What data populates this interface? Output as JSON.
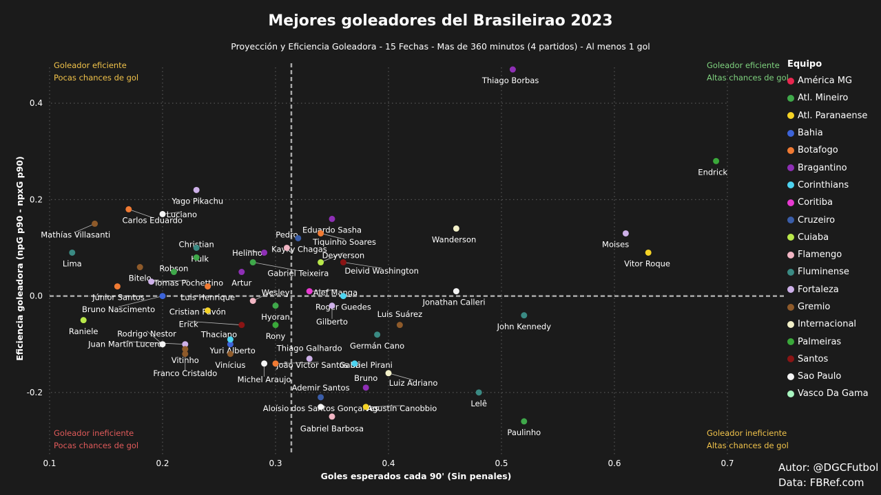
{
  "title": "Mejores goleadores del Brasileirao 2023",
  "subtitle": "Proyección y Eficiencia Goleadora - 15 Fechas - Mas de 360 minutos (4 partidos) - Al menos 1 gol",
  "corners": {
    "top_left": [
      "Goleador eficiente",
      "Pocas chances de gol"
    ],
    "top_right": [
      "Goleador eficiente",
      "Altas chances de gol"
    ],
    "bottom_left": [
      "Goleador ineficiente",
      "Pocas chances de gol"
    ],
    "bottom_right": [
      "Goleador ineficiente",
      "Altas chances de gol"
    ]
  },
  "colors": {
    "background": "#1b1b1b",
    "corner_yellow": "#f0c24a",
    "corner_green": "#7fd37f",
    "corner_red": "#e05a5a",
    "grid": "#555555",
    "mean_line": "#aaaaaa"
  },
  "credits": {
    "author": "Autor: @DGCFutbol",
    "data": "Data: FBRef.com"
  },
  "chart_data": {
    "type": "scatter",
    "xlabel": "Goles esperados cada 90' (Sin penales)",
    "ylabel": "Eficiencia goleadora (npG p90 - npxG p90)",
    "xlim": [
      0.1,
      0.7
    ],
    "ylim": [
      -0.33,
      0.5
    ],
    "xticks": [
      "0.1",
      "0.2",
      "0.3",
      "0.4",
      "0.5",
      "0.6",
      "0.7"
    ],
    "yticks": [
      "-0.2",
      "0.0",
      "0.2",
      "0.4"
    ],
    "grid": true,
    "mean_lines": {
      "x": 0.314,
      "y": 0.0
    },
    "legend_title": "Equipo",
    "legend_position": "right",
    "teams": [
      {
        "name": "América MG",
        "color": "#e8274f"
      },
      {
        "name": "Atl. Mineiro",
        "color": "#3fa84a"
      },
      {
        "name": "Atl. Paranaense",
        "color": "#f5d326"
      },
      {
        "name": "Bahia",
        "color": "#3c63d8"
      },
      {
        "name": "Botafogo",
        "color": "#f07a33"
      },
      {
        "name": "Bragantino",
        "color": "#8e2fb5"
      },
      {
        "name": "Corinthians",
        "color": "#4dd3f0"
      },
      {
        "name": "Coritiba",
        "color": "#e83ad1"
      },
      {
        "name": "Cruzeiro",
        "color": "#3a5da8"
      },
      {
        "name": "Cuiaba",
        "color": "#b9e84a"
      },
      {
        "name": "Flamengo",
        "color": "#f2b6c4"
      },
      {
        "name": "Fluminense",
        "color": "#3a8a83"
      },
      {
        "name": "Fortaleza",
        "color": "#cdb0e8"
      },
      {
        "name": "Gremio",
        "color": "#8e5a2a"
      },
      {
        "name": "Internacional",
        "color": "#f2f0c8"
      },
      {
        "name": "Palmeiras",
        "color": "#3aa83a"
      },
      {
        "name": "Santos",
        "color": "#8a1414"
      },
      {
        "name": "Sao Paulo",
        "color": "#f4f4f4"
      },
      {
        "name": "Vasco Da Gama",
        "color": "#a8f5c0"
      }
    ],
    "points": [
      {
        "label": "Thiago Borbas",
        "team": "Bragantino",
        "x": 0.51,
        "y": 0.47,
        "lx": 0.508,
        "ly": 0.447
      },
      {
        "label": "Endrick",
        "team": "Palmeiras",
        "x": 0.69,
        "y": 0.28,
        "lx": 0.687,
        "ly": 0.257
      },
      {
        "label": "Yago Pikachu",
        "team": "Fortaleza",
        "x": 0.23,
        "y": 0.22,
        "lx": 0.231,
        "ly": 0.197
      },
      {
        "label": "Carlos Eduardo",
        "team": "Botafogo",
        "x": 0.17,
        "y": 0.18,
        "lx": 0.191,
        "ly": 0.157
      },
      {
        "label": "Luciano",
        "team": "Sao Paulo",
        "x": 0.2,
        "y": 0.17,
        "lx": 0.217,
        "ly": 0.169
      },
      {
        "label": "Mathías Villasanti",
        "team": "Gremio",
        "x": 0.14,
        "y": 0.15,
        "lx": 0.123,
        "ly": 0.127
      },
      {
        "label": "Moises",
        "team": "Fortaleza",
        "x": 0.61,
        "y": 0.13,
        "lx": 0.601,
        "ly": 0.107
      },
      {
        "label": "Wanderson",
        "team": "Internacional",
        "x": 0.46,
        "y": 0.14,
        "lx": 0.458,
        "ly": 0.117
      },
      {
        "label": "Eduardo Sasha",
        "team": "Bragantino",
        "x": 0.35,
        "y": 0.16,
        "lx": 0.35,
        "ly": 0.137
      },
      {
        "label": "Pedro",
        "team": "Cruzeiro",
        "x": 0.32,
        "y": 0.12,
        "lx": 0.31,
        "ly": 0.127
      },
      {
        "label": "Tiquinho Soares",
        "team": "Botafogo",
        "x": 0.34,
        "y": 0.13,
        "lx": 0.361,
        "ly": 0.112
      },
      {
        "label": "Kayky Chagas",
        "team": "Flamengo",
        "x": 0.31,
        "y": 0.1,
        "lx": 0.321,
        "ly": 0.097
      },
      {
        "label": "Deyverson",
        "team": "Cuiaba",
        "x": 0.34,
        "y": 0.07,
        "lx": 0.36,
        "ly": 0.084
      },
      {
        "label": "Christian",
        "team": "Fluminense",
        "x": 0.23,
        "y": 0.1,
        "lx": 0.23,
        "ly": 0.107
      },
      {
        "label": "Hulk",
        "team": "Atl. Mineiro",
        "x": 0.23,
        "y": 0.08,
        "lx": 0.233,
        "ly": 0.077
      },
      {
        "label": "Helinho",
        "team": "Bragantino",
        "x": 0.29,
        "y": 0.09,
        "lx": 0.275,
        "ly": 0.089
      },
      {
        "label": "Lima",
        "team": "Fluminense",
        "x": 0.12,
        "y": 0.09,
        "lx": 0.12,
        "ly": 0.067
      },
      {
        "label": "Vitor Roque",
        "team": "Atl. Paranaense",
        "x": 0.63,
        "y": 0.09,
        "lx": 0.629,
        "ly": 0.067
      },
      {
        "label": "Robson",
        "team": "Atl. Mineiro",
        "x": 0.21,
        "y": 0.05,
        "lx": 0.21,
        "ly": 0.057
      },
      {
        "label": "Gabriel Teixeira",
        "team": "Atl. Mineiro",
        "x": 0.28,
        "y": 0.07,
        "lx": 0.32,
        "ly": 0.047
      },
      {
        "label": "Deivid Washington",
        "team": "Santos",
        "x": 0.36,
        "y": 0.07,
        "lx": 0.394,
        "ly": 0.052
      },
      {
        "label": "Bitelo",
        "team": "Gremio",
        "x": 0.18,
        "y": 0.06,
        "lx": 0.18,
        "ly": 0.037
      },
      {
        "label": "Tomas Pochettino",
        "team": "Fortaleza",
        "x": 0.19,
        "y": 0.03,
        "lx": 0.223,
        "ly": 0.027
      },
      {
        "label": "Artur",
        "team": "Bragantino",
        "x": 0.27,
        "y": 0.05,
        "lx": 0.27,
        "ly": 0.027
      },
      {
        "label": "Wesley",
        "team": "Flamengo",
        "x": 0.28,
        "y": -0.01,
        "lx": 0.3,
        "ly": 0.007
      },
      {
        "label": "Alef Manga",
        "team": "Coritiba",
        "x": 0.33,
        "y": 0.01,
        "lx": 0.353,
        "ly": 0.007
      },
      {
        "label": "Júnior Santos",
        "team": "Botafogo",
        "x": 0.16,
        "y": 0.02,
        "lx": 0.161,
        "ly": -0.003
      },
      {
        "label": "Luis Henrique",
        "team": "Botafogo",
        "x": 0.24,
        "y": 0.02,
        "lx": 0.24,
        "ly": -0.003
      },
      {
        "label": "Jonathan Calleri",
        "team": "Sao Paulo",
        "x": 0.46,
        "y": 0.01,
        "lx": 0.458,
        "ly": -0.013
      },
      {
        "label": "Bruno Nascimento",
        "team": "Bahia",
        "x": 0.2,
        "y": 0.0,
        "lx": 0.161,
        "ly": -0.028
      },
      {
        "label": "Roger Guedes",
        "team": "Corinthians",
        "x": 0.36,
        "y": 0.0,
        "lx": 0.36,
        "ly": -0.023
      },
      {
        "label": "Cristian Pavón",
        "team": "Atl. Paranaense",
        "x": 0.24,
        "y": -0.03,
        "lx": 0.231,
        "ly": -0.033
      },
      {
        "label": "Hyoran",
        "team": "Atl. Mineiro",
        "x": 0.3,
        "y": -0.02,
        "lx": 0.3,
        "ly": -0.043
      },
      {
        "label": "Luis Suárez",
        "team": "Gremio",
        "x": 0.41,
        "y": -0.06,
        "lx": 0.41,
        "ly": -0.038
      },
      {
        "label": "Gilberto",
        "team": "Fortaleza",
        "x": 0.35,
        "y": -0.02,
        "lx": 0.35,
        "ly": -0.053
      },
      {
        "label": "Erick",
        "team": "Santos",
        "x": 0.27,
        "y": -0.06,
        "lx": 0.223,
        "ly": -0.058
      },
      {
        "label": "John Kennedy",
        "team": "Fluminense",
        "x": 0.52,
        "y": -0.04,
        "lx": 0.52,
        "ly": -0.063
      },
      {
        "label": "Raniele",
        "team": "Cuiaba",
        "x": 0.13,
        "y": -0.05,
        "lx": 0.13,
        "ly": -0.073
      },
      {
        "label": "Rodrigo Nestor",
        "team": "Sao Paulo",
        "x": 0.2,
        "y": -0.1,
        "lx": 0.186,
        "ly": -0.078
      },
      {
        "label": "Rony",
        "team": "Palmeiras",
        "x": 0.3,
        "y": -0.06,
        "lx": 0.3,
        "ly": -0.083
      },
      {
        "label": "Thaciano",
        "team": "Bahia",
        "x": 0.26,
        "y": -0.1,
        "lx": 0.25,
        "ly": -0.08
      },
      {
        "label": "Juan Martín Lucero",
        "team": "Fortaleza",
        "x": 0.22,
        "y": -0.1,
        "lx": 0.167,
        "ly": -0.1
      },
      {
        "label": "Germán Cano",
        "team": "Fluminense",
        "x": 0.39,
        "y": -0.08,
        "lx": 0.39,
        "ly": -0.103
      },
      {
        "label": "Yuri Alberto",
        "team": "Corinthians",
        "x": 0.26,
        "y": -0.09,
        "lx": 0.262,
        "ly": -0.113
      },
      {
        "label": "Thiago Galhardo",
        "team": "Fortaleza",
        "x": 0.33,
        "y": -0.13,
        "lx": 0.33,
        "ly": -0.108
      },
      {
        "label": "Vitinho",
        "team": "Gremio",
        "x": 0.22,
        "y": -0.12,
        "lx": 0.22,
        "ly": -0.133
      },
      {
        "label": "Vinícius",
        "team": "Gremio",
        "x": 0.26,
        "y": -0.12,
        "lx": 0.26,
        "ly": -0.143
      },
      {
        "label": "João Victor Santos Sá",
        "team": "Botafogo",
        "x": 0.3,
        "y": -0.14,
        "lx": 0.338,
        "ly": -0.143
      },
      {
        "label": "Gabriel Pirani",
        "team": "Corinthians",
        "x": 0.37,
        "y": -0.14,
        "lx": 0.38,
        "ly": -0.143
      },
      {
        "label": "Franco Cristaldo",
        "team": "Gremio",
        "x": 0.22,
        "y": -0.11,
        "lx": 0.22,
        "ly": -0.16
      },
      {
        "label": "Michel Araujo",
        "team": "Sao Paulo",
        "x": 0.29,
        "y": -0.14,
        "lx": 0.29,
        "ly": -0.173
      },
      {
        "label": "Bruno",
        "team": "Bragantino",
        "x": 0.38,
        "y": -0.19,
        "lx": 0.38,
        "ly": -0.17
      },
      {
        "label": "Luiz Adriano",
        "team": "Internacional",
        "x": 0.4,
        "y": -0.16,
        "lx": 0.422,
        "ly": -0.18
      },
      {
        "label": "Ademir Santos",
        "team": "Cruzeiro",
        "x": 0.34,
        "y": -0.21,
        "lx": 0.34,
        "ly": -0.19
      },
      {
        "label": "Lelê",
        "team": "Fluminense",
        "x": 0.48,
        "y": -0.2,
        "lx": 0.48,
        "ly": -0.223
      },
      {
        "label": "Aloísio dos Santos Gonçalves",
        "team": "Sao Paulo",
        "x": 0.34,
        "y": -0.23,
        "lx": 0.34,
        "ly": -0.233
      },
      {
        "label": "Agustín Canobbio",
        "team": "Atl. Paranaense",
        "x": 0.38,
        "y": -0.23,
        "lx": 0.412,
        "ly": -0.233
      },
      {
        "label": "Gabriel Barbosa",
        "team": "Flamengo",
        "x": 0.35,
        "y": -0.25,
        "lx": 0.35,
        "ly": -0.275
      },
      {
        "label": "Paulinho",
        "team": "Atl. Mineiro",
        "x": 0.52,
        "y": -0.26,
        "lx": 0.52,
        "ly": -0.283
      }
    ]
  }
}
